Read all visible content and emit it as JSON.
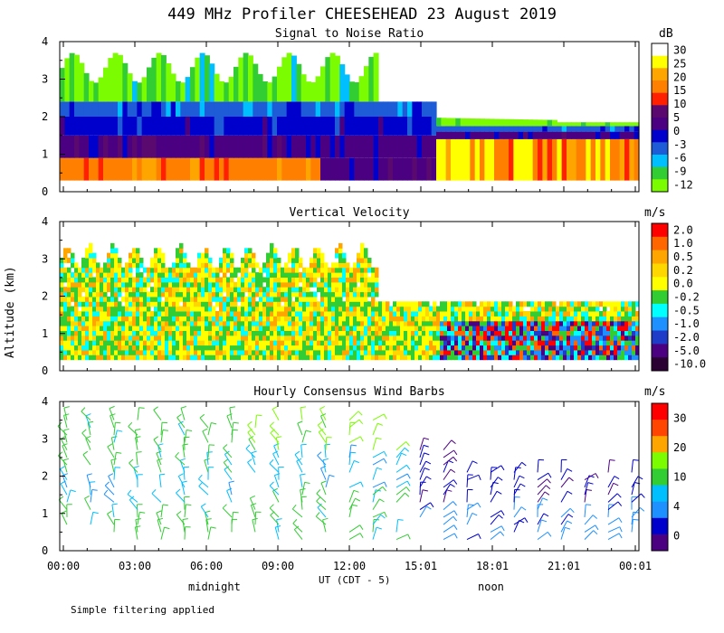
{
  "page": {
    "title": "449 MHz Profiler CHEESEHEAD 23 August 2019",
    "ylabel": "Altitude (km)",
    "xlabel": "UT (CDT - 5)",
    "marker_midnight": "midnight",
    "marker_noon": "noon",
    "footnote": "Simple filtering applied"
  },
  "x_ticks": [
    "00:00",
    "03:00",
    "06:00",
    "09:00",
    "12:00",
    "15:01",
    "18:01",
    "21:01",
    "00:01"
  ],
  "colors": {
    "snr": [
      "#7cfc00",
      "#32cd32",
      "#00bfff",
      "#1e5bd7",
      "#0000cd",
      "#4b0082",
      "#5a0a6e",
      "#ff2000",
      "#ff8000",
      "#ffa500",
      "#ffff00",
      "#ffffff"
    ],
    "velocity": [
      "#2b0033",
      "#4b0082",
      "#1e3cc8",
      "#1e90ff",
      "#00ffff",
      "#32cd32",
      "#ffff00",
      "#ffd700",
      "#ffa500",
      "#ff6600",
      "#ff0000"
    ],
    "wind": [
      "#4b0082",
      "#0000cd",
      "#1e90ff",
      "#00bfff",
      "#32cd32",
      "#7cfc00",
      "#ffa500",
      "#ff4500",
      "#ff0000"
    ]
  },
  "chart_data": [
    {
      "type": "heatmap",
      "title": "Signal to Noise Ratio",
      "unit": "dB",
      "ylim": [
        0,
        4
      ],
      "yticks": [
        0,
        1,
        2,
        3,
        4
      ],
      "scale_labels": [
        "30",
        "25",
        "20",
        "15",
        "10",
        "5",
        "0",
        "-3",
        "-6",
        "-9",
        "-12"
      ]
    },
    {
      "type": "heatmap",
      "title": "Vertical Velocity",
      "unit": "m/s",
      "ylim": [
        0,
        4
      ],
      "yticks": [
        0,
        1,
        2,
        3,
        4
      ],
      "scale_labels": [
        "2.0",
        "1.0",
        "0.5",
        "0.2",
        "0.0",
        "-0.2",
        "-0.5",
        "-1.0",
        "-2.0",
        "-5.0",
        "-10.0"
      ]
    },
    {
      "type": "scatter",
      "title": "Hourly Consensus Wind Barbs",
      "unit": "m/s",
      "ylim": [
        0,
        4
      ],
      "yticks": [
        0,
        1,
        2,
        3,
        4
      ],
      "scale_labels": [
        "30",
        "20",
        "10",
        "4",
        "0"
      ]
    }
  ]
}
